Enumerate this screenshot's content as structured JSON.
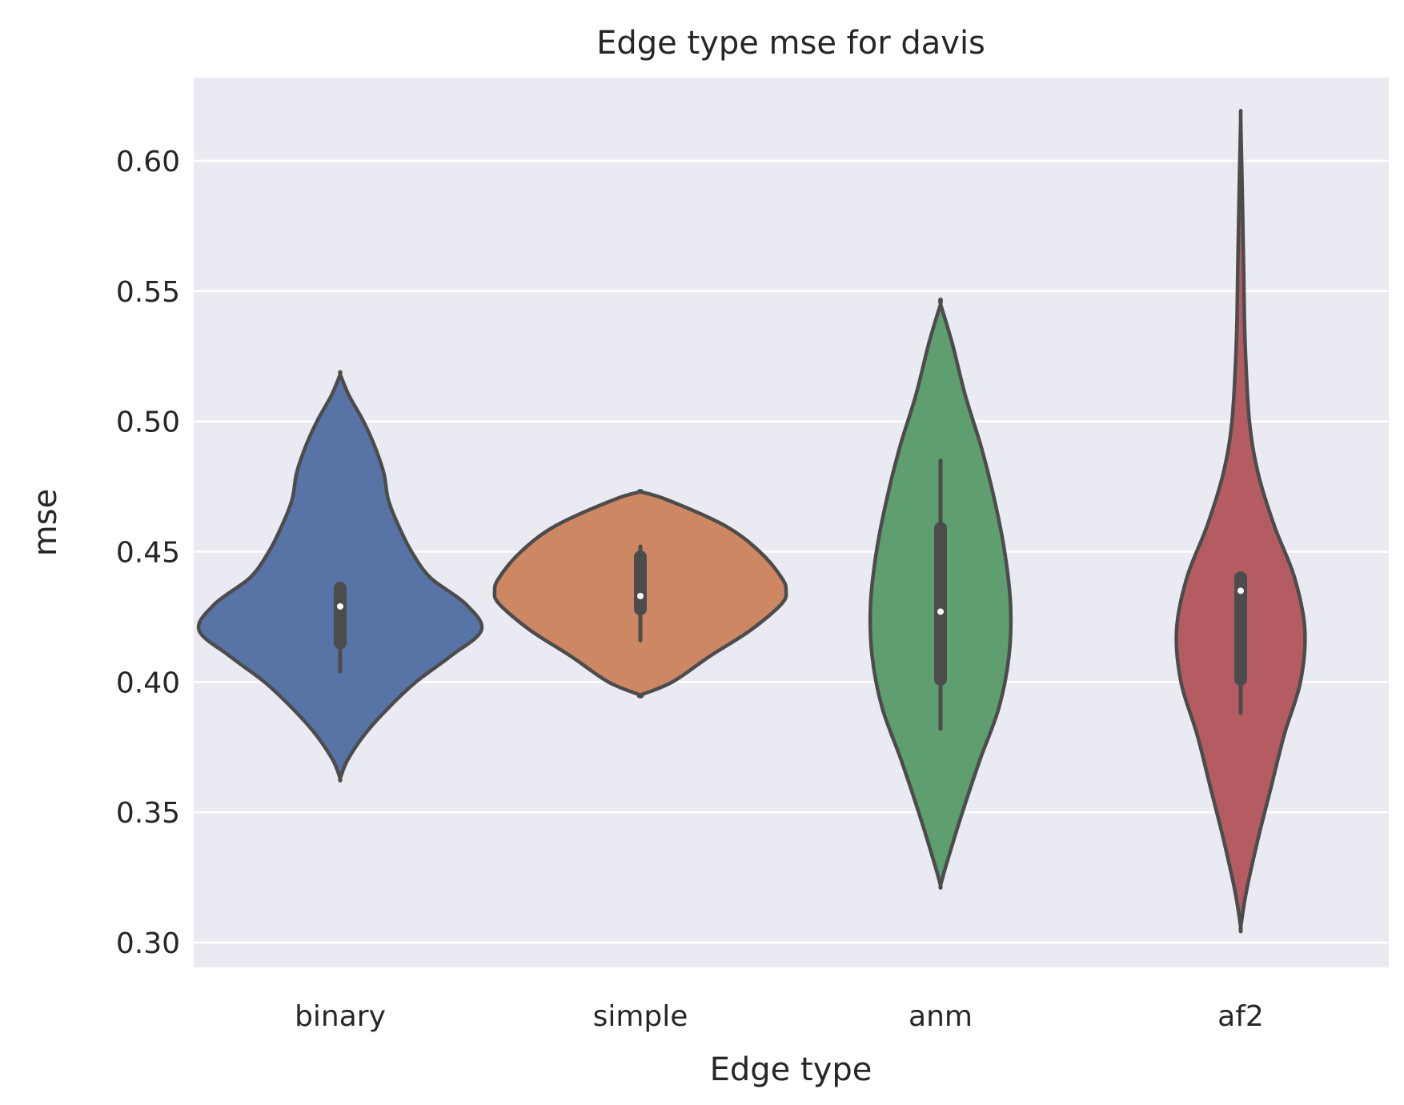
{
  "chart_data": {
    "type": "violin",
    "title": "Edge type mse for davis",
    "xlabel": "Edge type",
    "ylabel": "mse",
    "ylim": [
      0.29,
      0.632
    ],
    "yticks": [
      0.3,
      0.35,
      0.4,
      0.45,
      0.5,
      0.55,
      0.6
    ],
    "ytick_labels": [
      "0.30",
      "0.35",
      "0.40",
      "0.45",
      "0.50",
      "0.55",
      "0.60"
    ],
    "grid": true,
    "categories": [
      "binary",
      "simple",
      "anm",
      "af2"
    ],
    "colors": [
      "#5874a6",
      "#cd8763",
      "#5f9e6e",
      "#b55c62"
    ],
    "series": [
      {
        "name": "binary",
        "min": 0.363,
        "max": 0.518,
        "q1": 0.415,
        "median": 0.429,
        "q3": 0.436,
        "whisker_low": 0.404,
        "whisker_high": 0.436,
        "density": [
          [
            0.363,
            0.0
          ],
          [
            0.37,
            0.05
          ],
          [
            0.38,
            0.17
          ],
          [
            0.39,
            0.33
          ],
          [
            0.4,
            0.52
          ],
          [
            0.41,
            0.76
          ],
          [
            0.42,
            0.97
          ],
          [
            0.43,
            0.86
          ],
          [
            0.44,
            0.62
          ],
          [
            0.45,
            0.49
          ],
          [
            0.46,
            0.4
          ],
          [
            0.47,
            0.33
          ],
          [
            0.48,
            0.3
          ],
          [
            0.49,
            0.24
          ],
          [
            0.5,
            0.16
          ],
          [
            0.51,
            0.06
          ],
          [
            0.518,
            0.0
          ]
        ]
      },
      {
        "name": "simple",
        "min": 0.395,
        "max": 0.473,
        "q1": 0.428,
        "median": 0.433,
        "q3": 0.448,
        "whisker_low": 0.416,
        "whisker_high": 0.452,
        "density": [
          [
            0.395,
            0.0
          ],
          [
            0.4,
            0.22
          ],
          [
            0.41,
            0.48
          ],
          [
            0.42,
            0.76
          ],
          [
            0.43,
            0.97
          ],
          [
            0.435,
            1.0
          ],
          [
            0.44,
            0.97
          ],
          [
            0.45,
            0.82
          ],
          [
            0.46,
            0.58
          ],
          [
            0.47,
            0.18
          ],
          [
            0.473,
            0.0
          ]
        ]
      },
      {
        "name": "anm",
        "min": 0.322,
        "max": 0.545,
        "q1": 0.401,
        "median": 0.427,
        "q3": 0.459,
        "whisker_low": 0.382,
        "whisker_high": 0.485,
        "density": [
          [
            0.322,
            0.0
          ],
          [
            0.33,
            0.04
          ],
          [
            0.35,
            0.15
          ],
          [
            0.37,
            0.27
          ],
          [
            0.39,
            0.4
          ],
          [
            0.41,
            0.47
          ],
          [
            0.43,
            0.48
          ],
          [
            0.45,
            0.44
          ],
          [
            0.47,
            0.37
          ],
          [
            0.49,
            0.28
          ],
          [
            0.51,
            0.17
          ],
          [
            0.53,
            0.08
          ],
          [
            0.545,
            0.0
          ]
        ]
      },
      {
        "name": "af2",
        "min": 0.306,
        "max": 0.616,
        "q1": 0.401,
        "median": 0.435,
        "q3": 0.44,
        "whisker_low": 0.388,
        "whisker_high": 0.44,
        "density": [
          [
            0.306,
            0.0
          ],
          [
            0.32,
            0.04
          ],
          [
            0.34,
            0.12
          ],
          [
            0.36,
            0.21
          ],
          [
            0.38,
            0.3
          ],
          [
            0.4,
            0.41
          ],
          [
            0.42,
            0.44
          ],
          [
            0.44,
            0.37
          ],
          [
            0.46,
            0.23
          ],
          [
            0.48,
            0.12
          ],
          [
            0.5,
            0.06
          ],
          [
            0.53,
            0.03
          ],
          [
            0.56,
            0.02
          ],
          [
            0.59,
            0.01
          ],
          [
            0.616,
            0.0
          ]
        ]
      }
    ]
  }
}
